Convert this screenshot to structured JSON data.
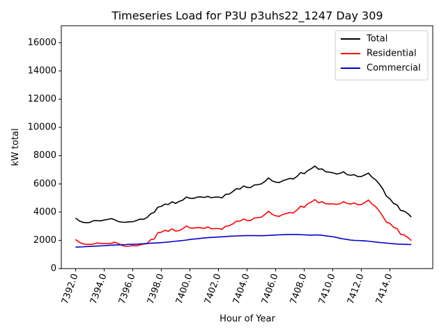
{
  "chart_data": {
    "type": "line",
    "title": "Timeseries Load for P3U p3uhs22_1247  Day 309",
    "xlabel": "Hour of Year",
    "ylabel": "kW total",
    "xlim": [
      7391,
      7417
    ],
    "ylim": [
      0,
      17200
    ],
    "x_ticks": [
      7392,
      7394,
      7396,
      7398,
      7400,
      7402,
      7404,
      7406,
      7408,
      7410,
      7412,
      7414
    ],
    "x_tick_labels": [
      "7392.0",
      "7394.0",
      "7396.0",
      "7398.0",
      "7400.0",
      "7402.0",
      "7404.0",
      "7406.0",
      "7408.0",
      "7410.0",
      "7412.0",
      "7414.0"
    ],
    "y_ticks": [
      0,
      2000,
      4000,
      6000,
      8000,
      10000,
      12000,
      14000,
      16000
    ],
    "y_tick_labels": [
      "0",
      "2000",
      "4000",
      "6000",
      "8000",
      "10000",
      "12000",
      "14000",
      "16000"
    ],
    "legend_position": "top-right",
    "x_start": 7392,
    "x_step": 0.25,
    "series": [
      {
        "name": "Total",
        "color": "#000000",
        "values": [
          3580,
          3380,
          3280,
          3250,
          3270,
          3390,
          3390,
          3380,
          3440,
          3480,
          3540,
          3450,
          3330,
          3290,
          3280,
          3310,
          3320,
          3400,
          3500,
          3490,
          3620,
          3880,
          3980,
          4350,
          4410,
          4570,
          4540,
          4730,
          4620,
          4760,
          4850,
          5070,
          4980,
          4970,
          5060,
          5080,
          5040,
          5110,
          5020,
          5060,
          5070,
          5010,
          5260,
          5280,
          5450,
          5660,
          5630,
          5850,
          5750,
          5740,
          5920,
          5940,
          6000,
          6170,
          6420,
          6220,
          6120,
          6090,
          6220,
          6300,
          6390,
          6350,
          6530,
          6800,
          6720,
          6940,
          7080,
          7260,
          7040,
          7060,
          6860,
          6830,
          6790,
          6700,
          6740,
          6860,
          6660,
          6610,
          6650,
          6520,
          6520,
          6640,
          6760,
          6470,
          6290,
          6000,
          5650,
          5140,
          4940,
          4620,
          4510,
          4120,
          4070,
          3900,
          3660
        ]
      },
      {
        "name": "Residential",
        "color": "#ff0000",
        "values": [
          2060,
          1870,
          1760,
          1720,
          1710,
          1730,
          1810,
          1790,
          1760,
          1780,
          1790,
          1870,
          1770,
          1640,
          1580,
          1590,
          1630,
          1610,
          1670,
          1740,
          1760,
          2050,
          2090,
          2540,
          2580,
          2710,
          2640,
          2820,
          2660,
          2690,
          2820,
          3020,
          2880,
          2870,
          2900,
          2900,
          2840,
          2960,
          2820,
          2830,
          2840,
          2780,
          3000,
          3040,
          3160,
          3360,
          3360,
          3510,
          3410,
          3410,
          3580,
          3610,
          3640,
          3830,
          4060,
          3850,
          3740,
          3700,
          3830,
          3900,
          3980,
          3940,
          4150,
          4420,
          4340,
          4600,
          4710,
          4890,
          4660,
          4740,
          4600,
          4580,
          4590,
          4550,
          4590,
          4750,
          4620,
          4570,
          4650,
          4530,
          4530,
          4680,
          4860,
          4570,
          4390,
          4080,
          3700,
          3300,
          3200,
          2930,
          2830,
          2430,
          2380,
          2210,
          1980
        ]
      },
      {
        "name": "Commercial",
        "color": "#0000cc",
        "values": [
          1520,
          1530,
          1540,
          1560,
          1570,
          1580,
          1600,
          1610,
          1620,
          1640,
          1660,
          1670,
          1680,
          1690,
          1700,
          1720,
          1720,
          1730,
          1750,
          1760,
          1780,
          1800,
          1810,
          1820,
          1840,
          1860,
          1880,
          1910,
          1940,
          1960,
          1990,
          2020,
          2060,
          2090,
          2110,
          2140,
          2170,
          2190,
          2210,
          2220,
          2240,
          2250,
          2270,
          2290,
          2300,
          2310,
          2320,
          2330,
          2340,
          2340,
          2340,
          2330,
          2330,
          2340,
          2350,
          2360,
          2380,
          2390,
          2400,
          2410,
          2410,
          2410,
          2410,
          2400,
          2390,
          2380,
          2370,
          2380,
          2380,
          2360,
          2320,
          2290,
          2260,
          2210,
          2140,
          2100,
          2060,
          2020,
          2000,
          1990,
          1980,
          1960,
          1940,
          1910,
          1880,
          1850,
          1830,
          1810,
          1780,
          1760,
          1740,
          1730,
          1720,
          1710,
          1700
        ]
      }
    ]
  }
}
